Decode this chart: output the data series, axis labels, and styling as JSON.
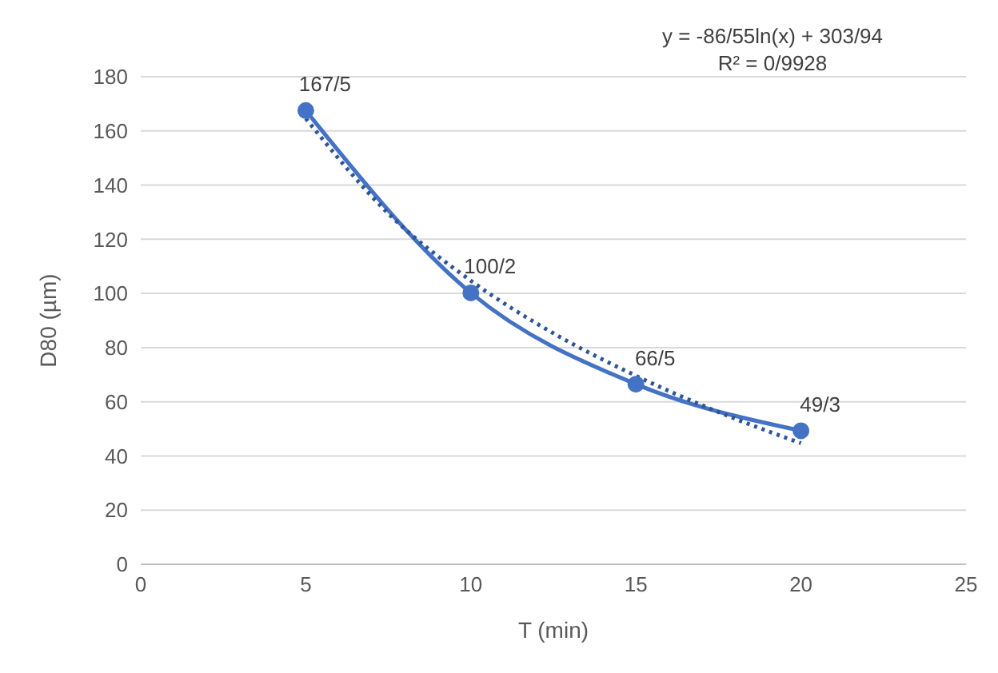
{
  "chart_data": {
    "type": "line",
    "xlabel": "T (min)",
    "ylabel": "D80 (µm)",
    "annotations": [
      "y = -86/55ln(x) + 303/94",
      "R² = 0/9928"
    ],
    "xlim": [
      0,
      25
    ],
    "xticks": [
      0,
      5,
      10,
      15,
      20,
      25
    ],
    "ylim": [
      0,
      180
    ],
    "yticks": [
      0,
      20,
      40,
      60,
      80,
      100,
      120,
      140,
      160,
      180
    ],
    "grid": "y",
    "series": [
      {
        "color": "#4472c4",
        "x": [
          5,
          10,
          15,
          20
        ],
        "values": [
          167.5,
          100.2,
          66.5,
          49.3
        ],
        "value_labels": [
          "167/5",
          "100/2",
          "66/5",
          "49/3"
        ],
        "marker": "circle",
        "line_style": "solid"
      },
      {
        "color": "#2f5597",
        "x": [
          5,
          7.5,
          10,
          12.5,
          15,
          17.5,
          20
        ],
        "values": [
          164.6,
          129.5,
          104.7,
          85.3,
          69.6,
          56.2,
          44.7
        ],
        "marker": "none",
        "line_style": "dotted"
      }
    ]
  }
}
